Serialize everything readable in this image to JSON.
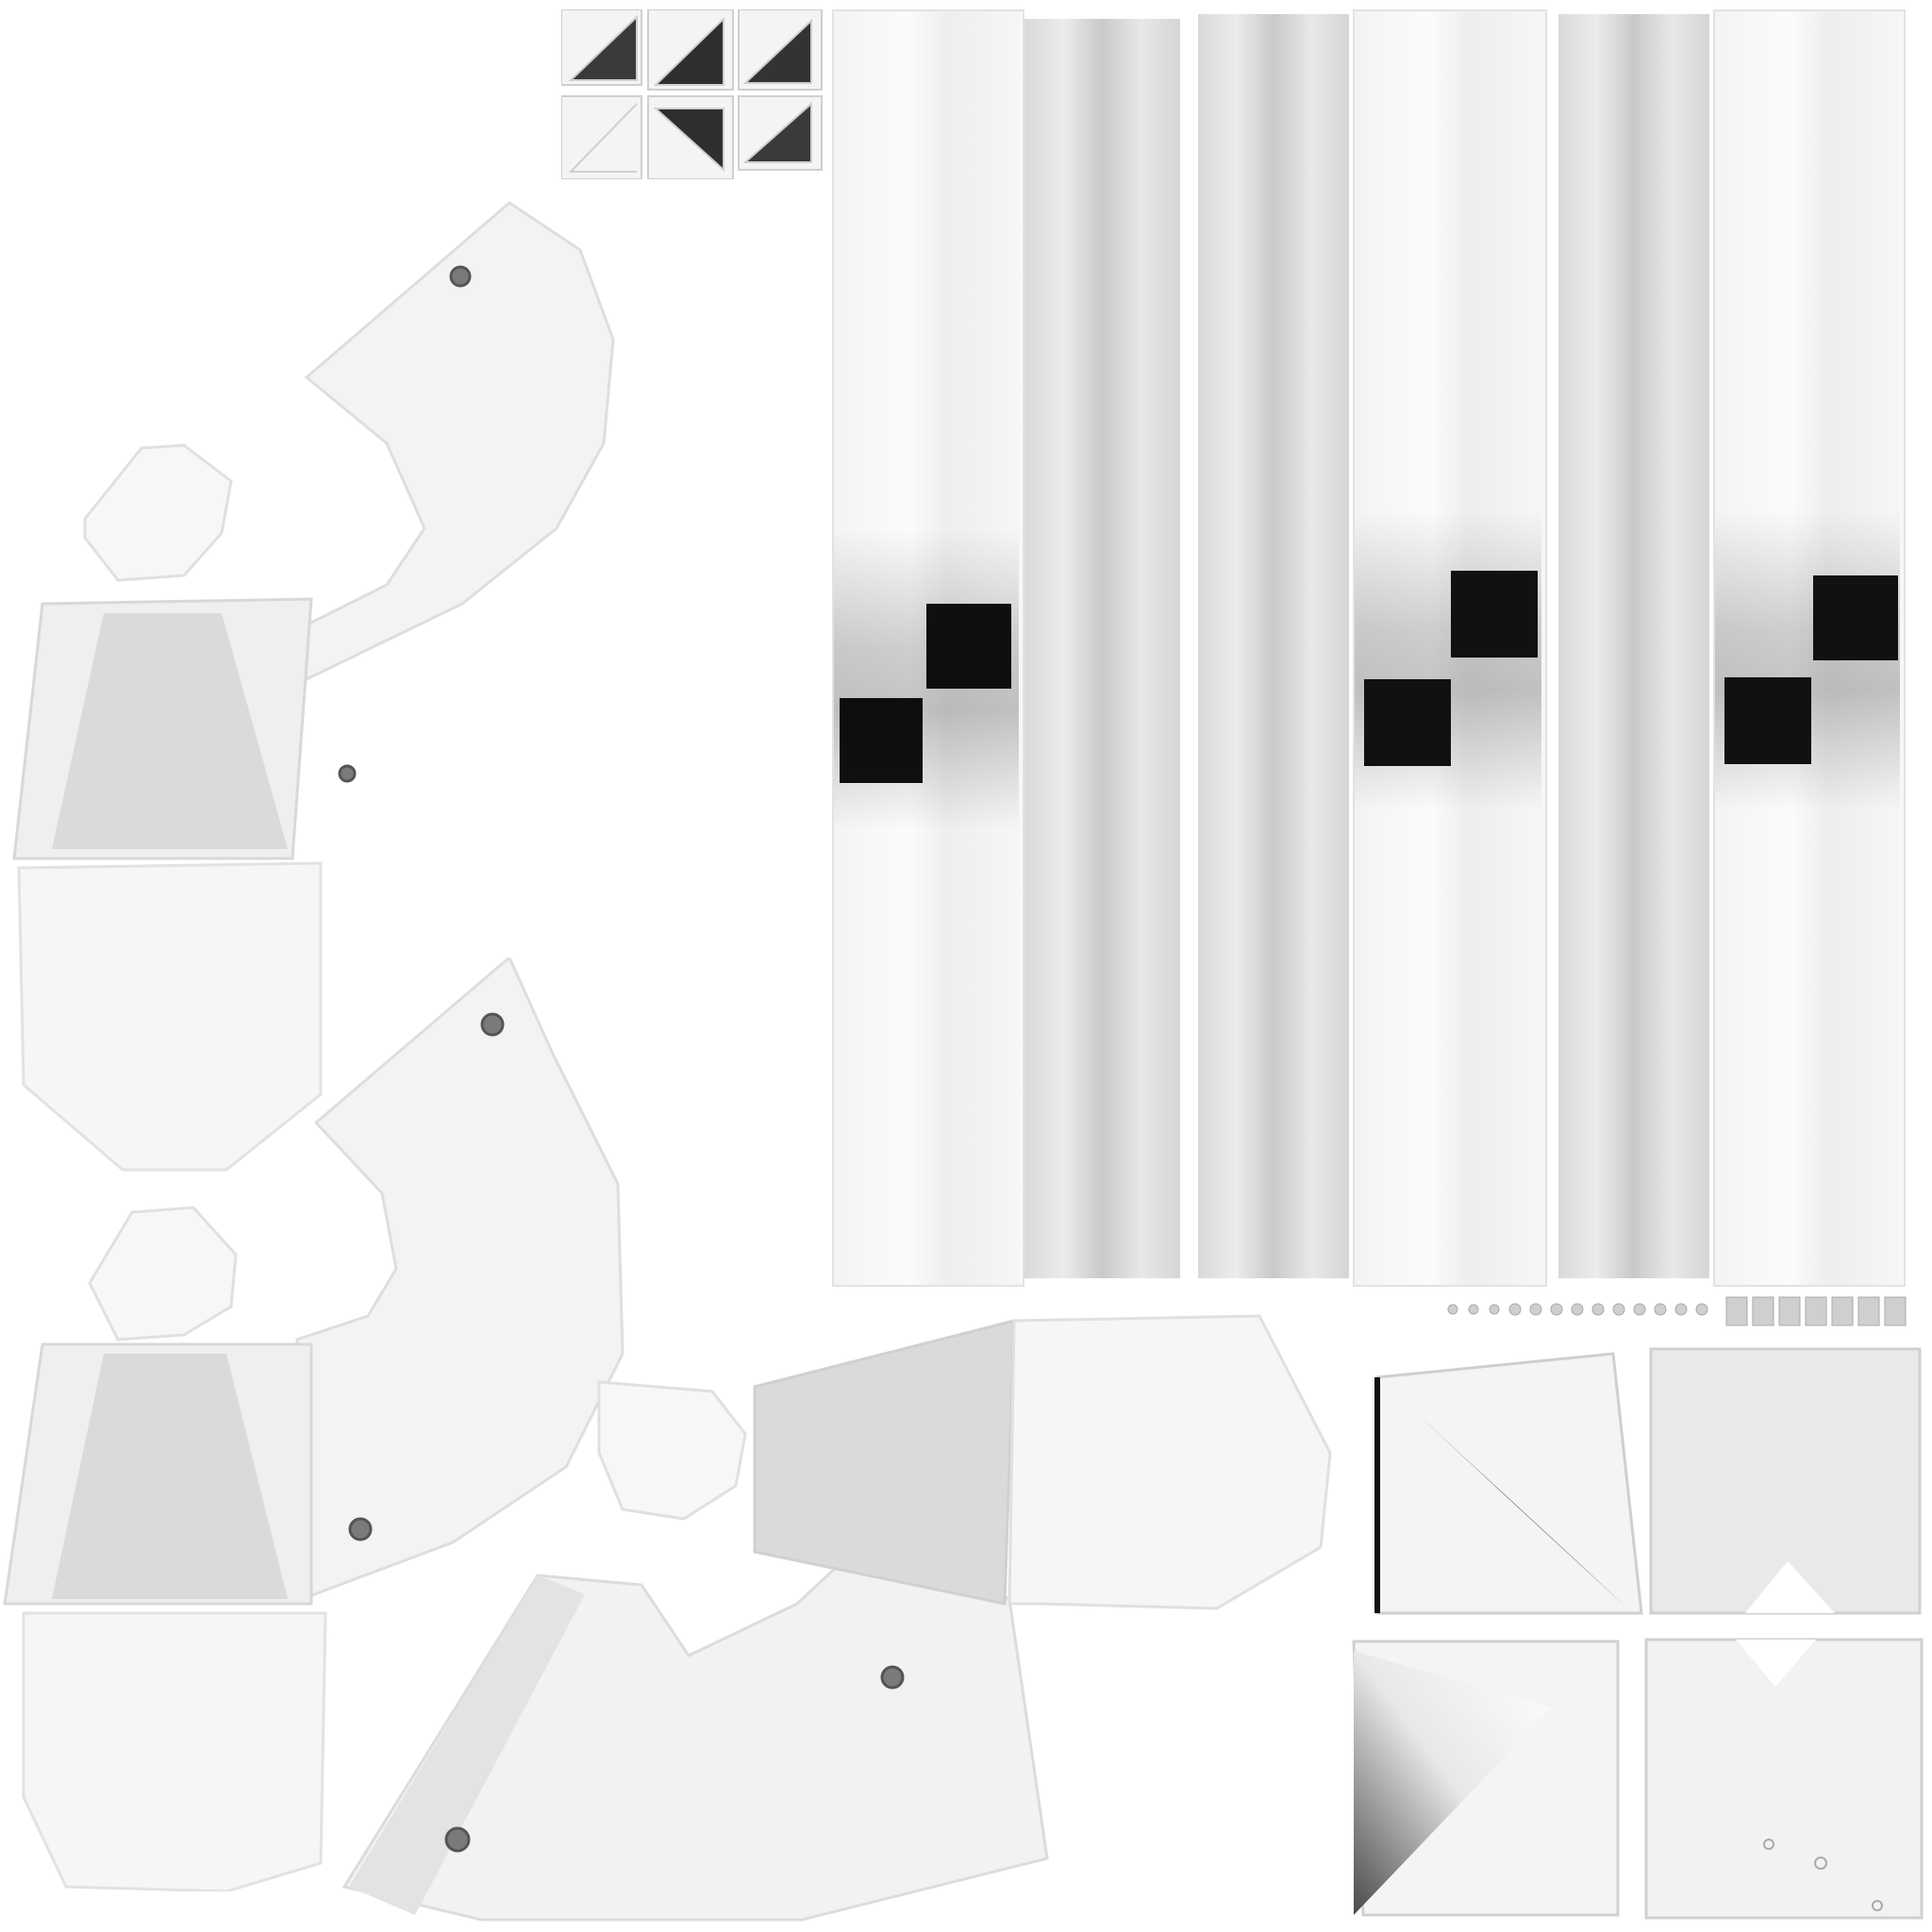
{
  "image": {
    "description_tokens": [],
    "colors": {
      "background": "#ffffff",
      "panel_light": "#f4f4f4",
      "panel_mid": "#dcdcdc",
      "panel_dark": "#bcbcbc",
      "shadow_black": "#111111"
    }
  }
}
